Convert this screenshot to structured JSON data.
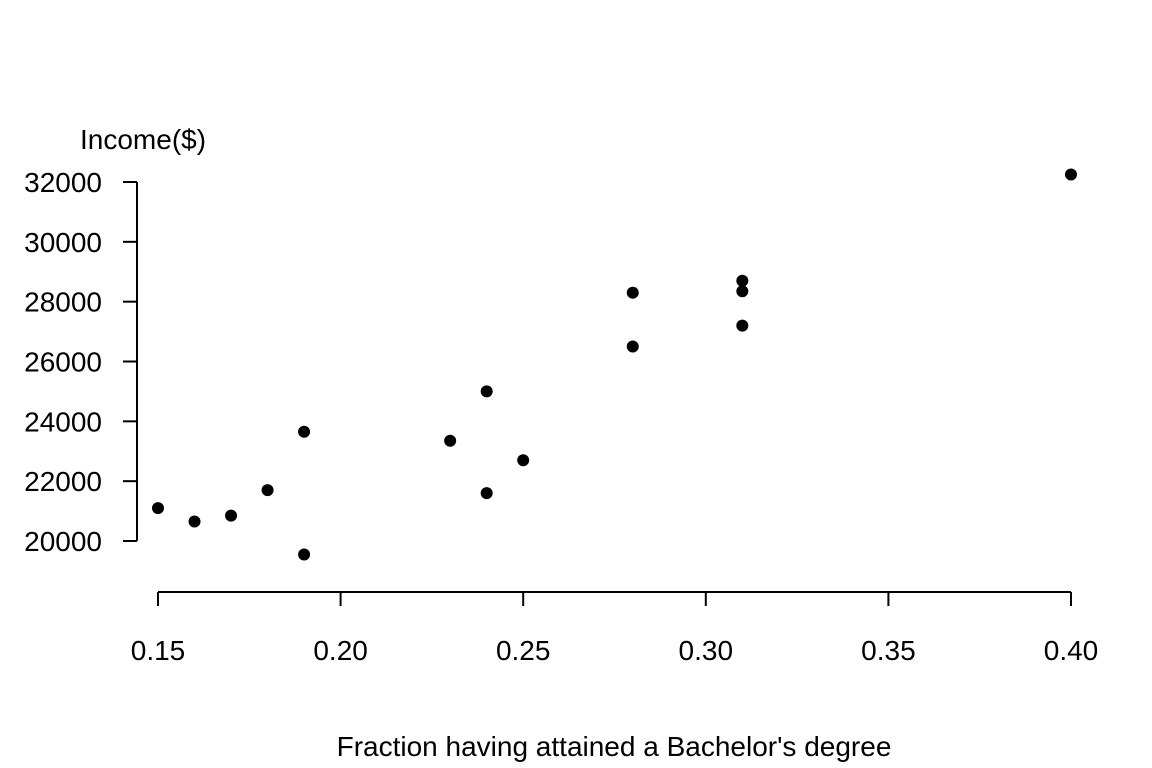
{
  "chart_data": {
    "type": "scatter",
    "title": "",
    "xlabel": "Fraction having attained a Bachelor's degree",
    "ylabel": "Income($)",
    "xlim": [
      0.15,
      0.4
    ],
    "ylim": [
      20000,
      32000
    ],
    "x_ticks": [
      0.15,
      0.2,
      0.25,
      0.3,
      0.35,
      0.4
    ],
    "x_tick_labels": [
      "0.15",
      "0.20",
      "0.25",
      "0.30",
      "0.35",
      "0.40"
    ],
    "y_ticks": [
      20000,
      22000,
      24000,
      26000,
      28000,
      30000,
      32000
    ],
    "y_tick_labels": [
      "20000",
      "22000",
      "24000",
      "26000",
      "28000",
      "30000",
      "32000"
    ],
    "grid": false,
    "legend": "none",
    "marker_color": "#000000",
    "points": [
      {
        "x": 0.15,
        "y": 21100
      },
      {
        "x": 0.16,
        "y": 20650
      },
      {
        "x": 0.17,
        "y": 20850
      },
      {
        "x": 0.18,
        "y": 21700
      },
      {
        "x": 0.19,
        "y": 23650
      },
      {
        "x": 0.19,
        "y": 19550
      },
      {
        "x": 0.23,
        "y": 23350
      },
      {
        "x": 0.24,
        "y": 25000
      },
      {
        "x": 0.24,
        "y": 21600
      },
      {
        "x": 0.25,
        "y": 22700
      },
      {
        "x": 0.28,
        "y": 28300
      },
      {
        "x": 0.28,
        "y": 26500
      },
      {
        "x": 0.31,
        "y": 28700
      },
      {
        "x": 0.31,
        "y": 28350
      },
      {
        "x": 0.31,
        "y": 27200
      },
      {
        "x": 0.4,
        "y": 32250
      }
    ]
  }
}
